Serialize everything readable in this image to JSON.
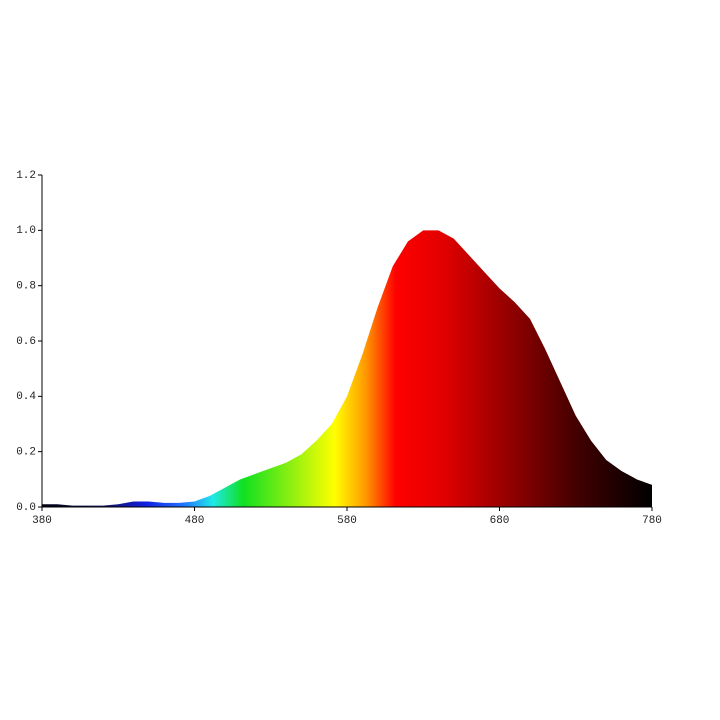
{
  "chart_data": {
    "type": "area",
    "x": [
      380,
      390,
      400,
      410,
      420,
      430,
      440,
      450,
      460,
      470,
      480,
      490,
      500,
      510,
      520,
      530,
      540,
      550,
      560,
      570,
      580,
      590,
      600,
      610,
      620,
      630,
      640,
      650,
      660,
      670,
      680,
      690,
      700,
      710,
      720,
      730,
      740,
      750,
      760,
      770,
      780
    ],
    "values": [
      0.01,
      0.01,
      0.005,
      0.005,
      0.005,
      0.01,
      0.02,
      0.02,
      0.015,
      0.015,
      0.02,
      0.04,
      0.07,
      0.1,
      0.12,
      0.14,
      0.16,
      0.19,
      0.24,
      0.3,
      0.4,
      0.55,
      0.72,
      0.87,
      0.96,
      1.0,
      1.0,
      0.97,
      0.91,
      0.85,
      0.79,
      0.74,
      0.68,
      0.57,
      0.45,
      0.33,
      0.24,
      0.17,
      0.13,
      0.1,
      0.08
    ],
    "xlim": [
      380,
      780
    ],
    "xticks": [
      380,
      480,
      580,
      680,
      780
    ],
    "ylim": [
      0,
      1.2
    ],
    "yticks": [
      {
        "value": 0,
        "label": "0.0"
      },
      0.2,
      0.4,
      0.6,
      0.8,
      {
        "value": 1,
        "label": "1.0"
      },
      1.2
    ]
  }
}
